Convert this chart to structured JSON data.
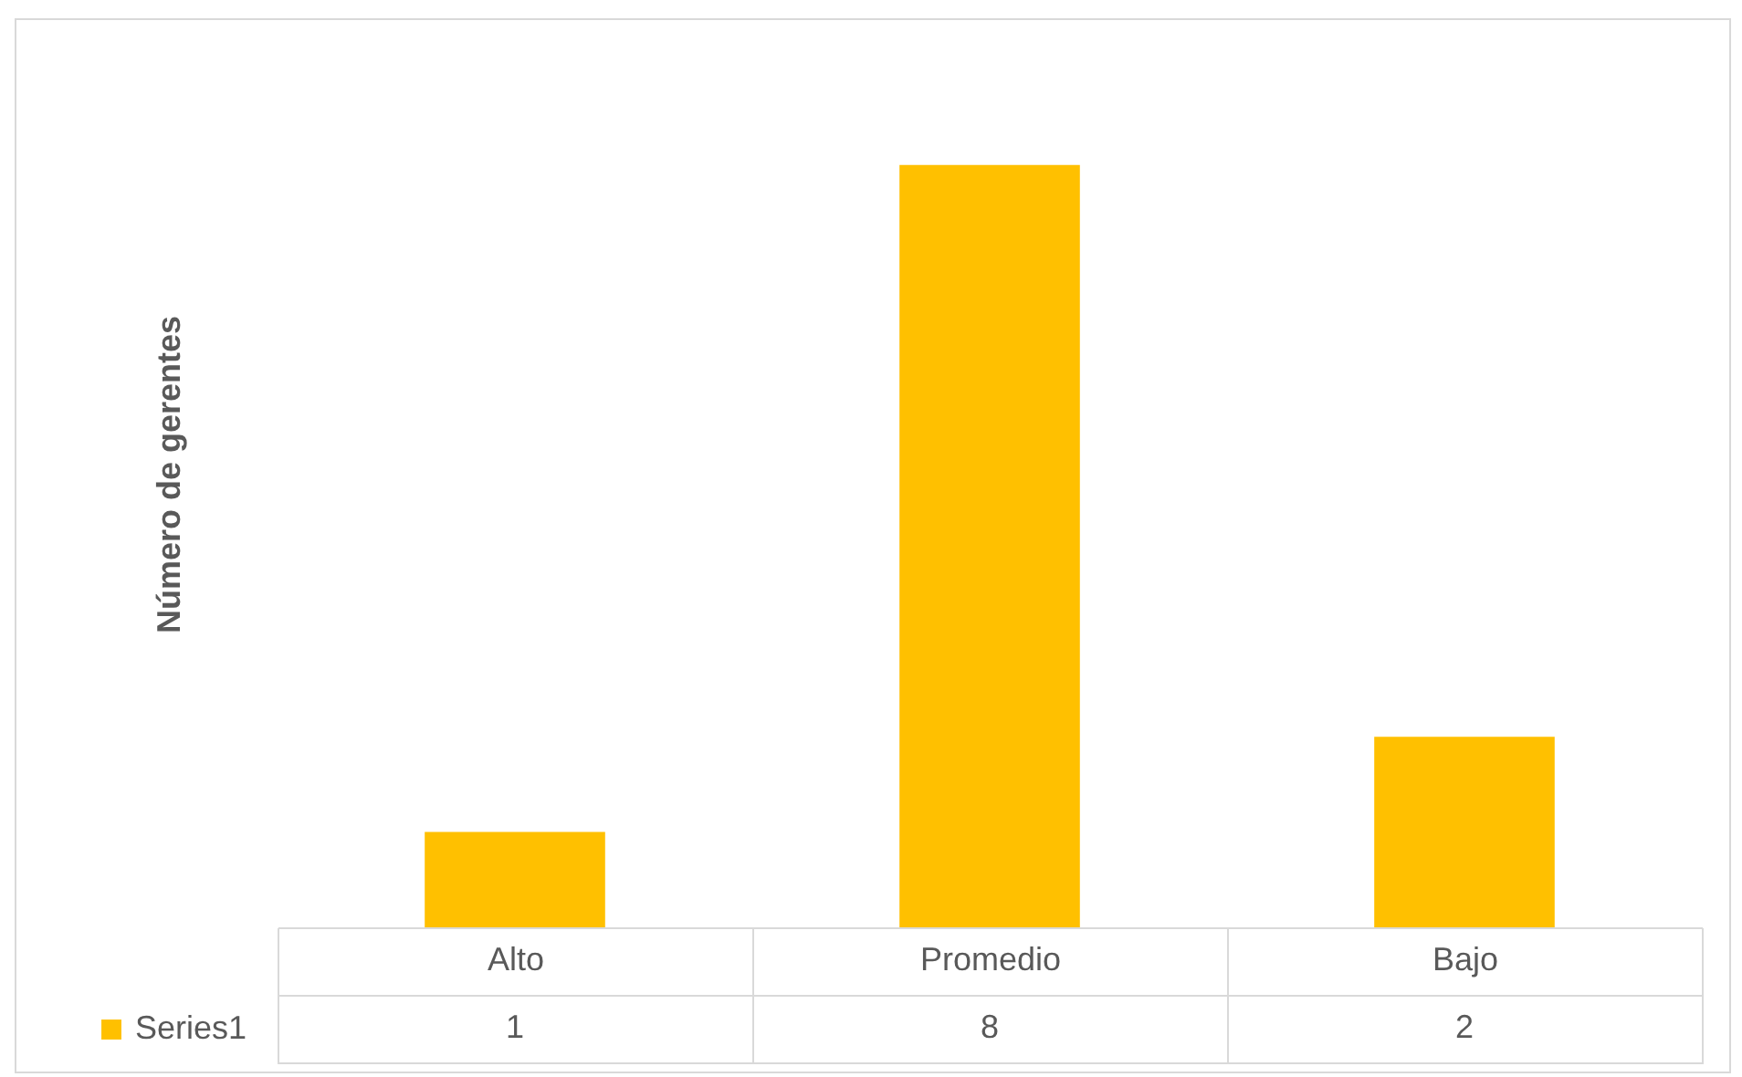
{
  "chart_data": {
    "type": "bar",
    "ylabel": "Número de gerentes",
    "categories": [
      "Alto",
      "Promedio",
      "Bajo"
    ],
    "series": [
      {
        "name": "Series1",
        "color": "#ffc000",
        "values": [
          1,
          8,
          2
        ]
      }
    ],
    "data_labels": true,
    "legend": "bottom left",
    "grid": false
  }
}
